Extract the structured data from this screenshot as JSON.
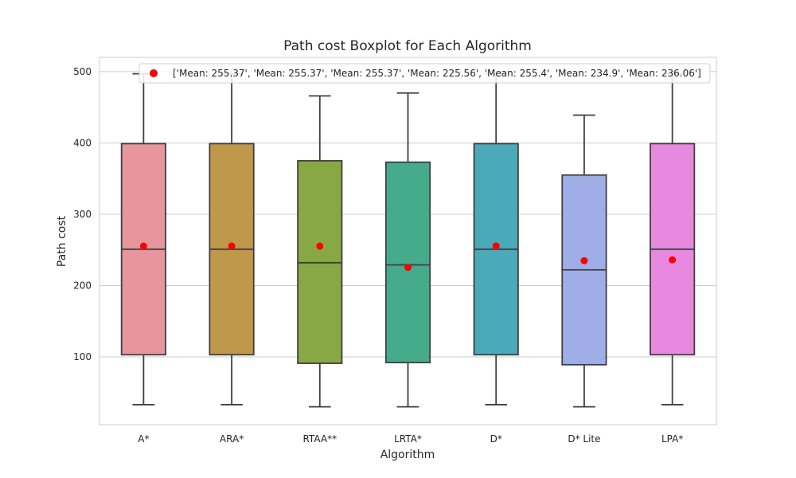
{
  "chart_data": {
    "type": "box",
    "title": "Path cost Boxplot for Each Algorithm",
    "xlabel": "Algorithm",
    "ylabel": "Path cost",
    "ylim": [
      5,
      520
    ],
    "yticks": [
      100,
      200,
      300,
      400,
      500
    ],
    "grid": "horizontal",
    "legend_position": "top-right",
    "legend_label": "['Mean: 255.37', 'Mean: 255.37', 'Mean: 255.37', 'Mean: 225.56', 'Mean: 255.4', 'Mean: 234.9', 'Mean: 236.06']",
    "mean_marker_color": "#ff0000",
    "categories": [
      "A*",
      "ARA*",
      "RTAA**",
      "LRTA*",
      "D*",
      "D* Lite",
      "LPA*"
    ],
    "boxes": [
      {
        "whisker_low": 33,
        "q1": 103,
        "median": 251,
        "q3": 399,
        "whisker_high": 497,
        "mean": 255.37,
        "color": "#e8959d"
      },
      {
        "whisker_low": 33,
        "q1": 103,
        "median": 251,
        "q3": 399,
        "whisker_high": 497,
        "mean": 255.37,
        "color": "#c0984a"
      },
      {
        "whisker_low": 30,
        "q1": 91,
        "median": 232,
        "q3": 375,
        "whisker_high": 466,
        "mean": 255.37,
        "color": "#88a845"
      },
      {
        "whisker_low": 30,
        "q1": 92,
        "median": 229,
        "q3": 373,
        "whisker_high": 470,
        "mean": 225.56,
        "color": "#45ab8b"
      },
      {
        "whisker_low": 33,
        "q1": 103,
        "median": 251,
        "q3": 399,
        "whisker_high": 497,
        "mean": 255.4,
        "color": "#4baab9"
      },
      {
        "whisker_low": 30,
        "q1": 89,
        "median": 222,
        "q3": 355,
        "whisker_high": 439,
        "mean": 234.9,
        "color": "#a0aee8"
      },
      {
        "whisker_low": 33,
        "q1": 103,
        "median": 251,
        "q3": 399,
        "whisker_high": 497,
        "mean": 236.06,
        "color": "#e889e0"
      }
    ]
  }
}
